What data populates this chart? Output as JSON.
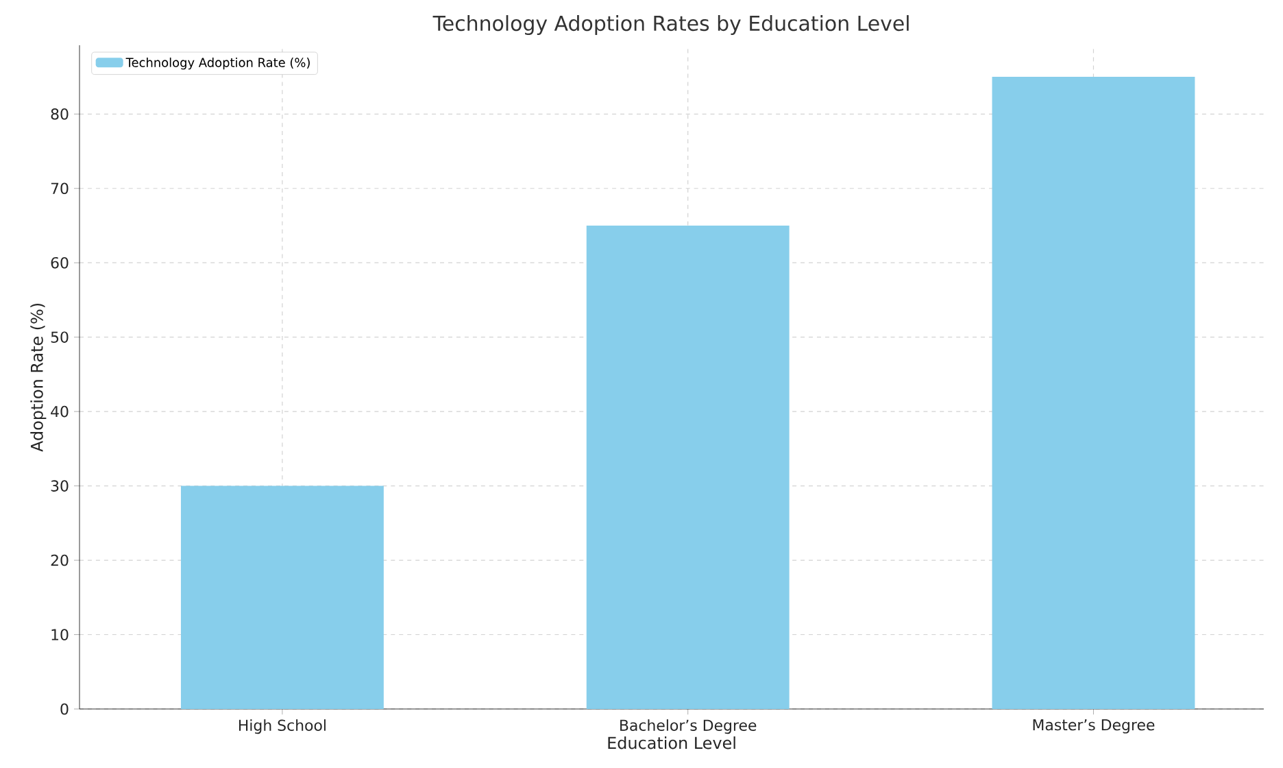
{
  "chart_data": {
    "type": "bar",
    "title": "Technology Adoption Rates by Education Level",
    "xlabel": "Education Level",
    "ylabel": "Adoption Rate (%)",
    "categories": [
      "High School",
      "Bachelor’s Degree",
      "Master’s Degree"
    ],
    "series": [
      {
        "name": "Technology Adoption Rate (%)",
        "color": "#87ceeb",
        "values": [
          30,
          65,
          85
        ]
      }
    ],
    "ylim": [
      0,
      89.25
    ],
    "yticks": [
      0,
      10,
      20,
      30,
      40,
      50,
      60,
      70,
      80
    ],
    "grid": true,
    "legend": "top left"
  }
}
